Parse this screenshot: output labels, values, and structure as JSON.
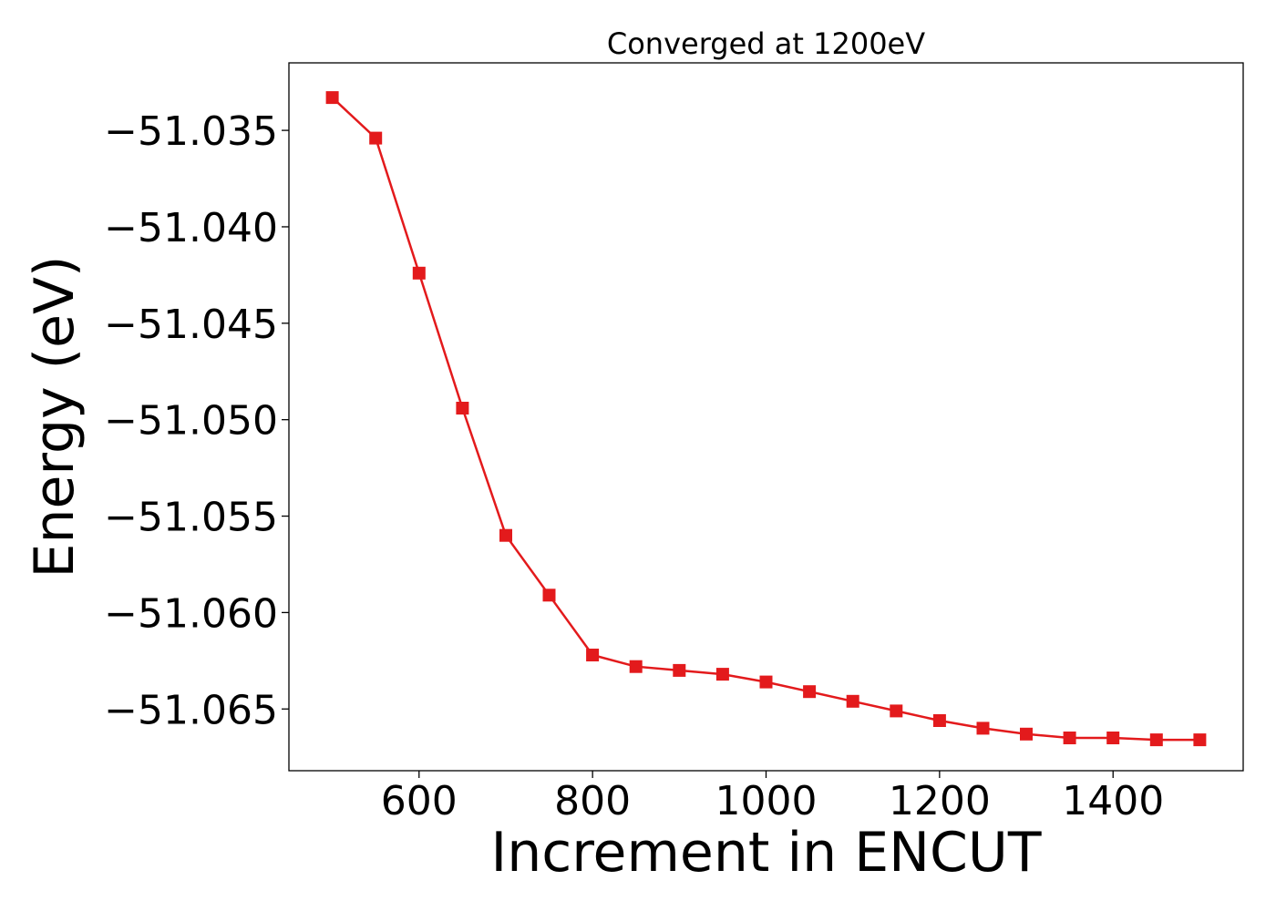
{
  "chart_data": {
    "type": "line",
    "title": "Converged at 1200eV",
    "xlabel": "Increment in ENCUT",
    "ylabel": "Energy (eV)",
    "xlim": [
      450,
      1550
    ],
    "ylim": [
      -51.0682,
      -51.0315
    ],
    "xticks": [
      600,
      800,
      1000,
      1200,
      1400
    ],
    "xtick_labels": [
      "600",
      "800",
      "1000",
      "1200",
      "1400"
    ],
    "yticks": [
      -51.035,
      -51.04,
      -51.045,
      -51.05,
      -51.055,
      -51.06,
      -51.065
    ],
    "ytick_labels": [
      "−51.035",
      "−51.040",
      "−51.045",
      "−51.050",
      "−51.055",
      "−51.060",
      "−51.065"
    ],
    "grid": false,
    "legend": "none",
    "marker": "square",
    "series": [
      {
        "color": "#e31a1c",
        "x": [
          500,
          550,
          600,
          650,
          700,
          750,
          800,
          850,
          900,
          950,
          1000,
          1050,
          1100,
          1150,
          1200,
          1250,
          1300,
          1350,
          1400,
          1450,
          1500
        ],
        "y": [
          -51.0333,
          -51.0354,
          -51.0424,
          -51.0494,
          -51.056,
          -51.0591,
          -51.0622,
          -51.0628,
          -51.063,
          -51.0632,
          -51.0636,
          -51.0641,
          -51.0646,
          -51.0651,
          -51.0656,
          -51.066,
          -51.0663,
          -51.0665,
          -51.0665,
          -51.0666,
          -51.0666
        ]
      }
    ]
  }
}
